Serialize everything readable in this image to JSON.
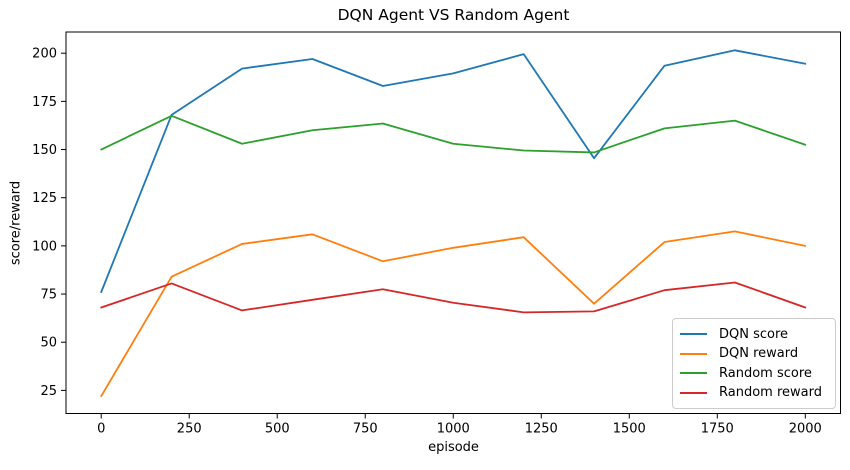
{
  "figure": {
    "title": "DQN Agent VS Random Agent"
  },
  "chart_data": {
    "type": "line",
    "title": "DQN Agent VS Random Agent",
    "xlabel": "episode",
    "ylabel": "score/reward",
    "x": [
      0,
      200,
      400,
      600,
      800,
      1000,
      1200,
      1400,
      1600,
      1800,
      2000
    ],
    "series": [
      {
        "name": "DQN score",
        "color": "#1f77b4",
        "values": [
          76,
          168,
          192,
          197,
          183,
          189.5,
          199.5,
          145.5,
          193.5,
          201.5,
          194.5
        ]
      },
      {
        "name": "DQN reward",
        "color": "#ff7f0e",
        "values": [
          22,
          84,
          101,
          106,
          92,
          99,
          104.5,
          70,
          102,
          107.5,
          100
        ]
      },
      {
        "name": "Random score",
        "color": "#2ca02c",
        "values": [
          150,
          167.5,
          153,
          160,
          163.5,
          153,
          149.5,
          148.5,
          161,
          165,
          152.5
        ]
      },
      {
        "name": "Random reward",
        "color": "#d62728",
        "values": [
          68,
          80.5,
          66.5,
          72,
          77.5,
          70.5,
          65.5,
          66,
          77,
          81,
          68
        ]
      }
    ],
    "xticks": [
      0,
      250,
      500,
      750,
      1000,
      1250,
      1500,
      1750,
      2000
    ],
    "yticks": [
      25,
      50,
      75,
      100,
      125,
      150,
      175,
      200
    ],
    "xlim": [
      -100,
      2100
    ],
    "ylim": [
      13,
      211
    ],
    "grid": false,
    "legend_position": "lower right",
    "axis_color": "#000000",
    "background_color": "#ffffff"
  }
}
